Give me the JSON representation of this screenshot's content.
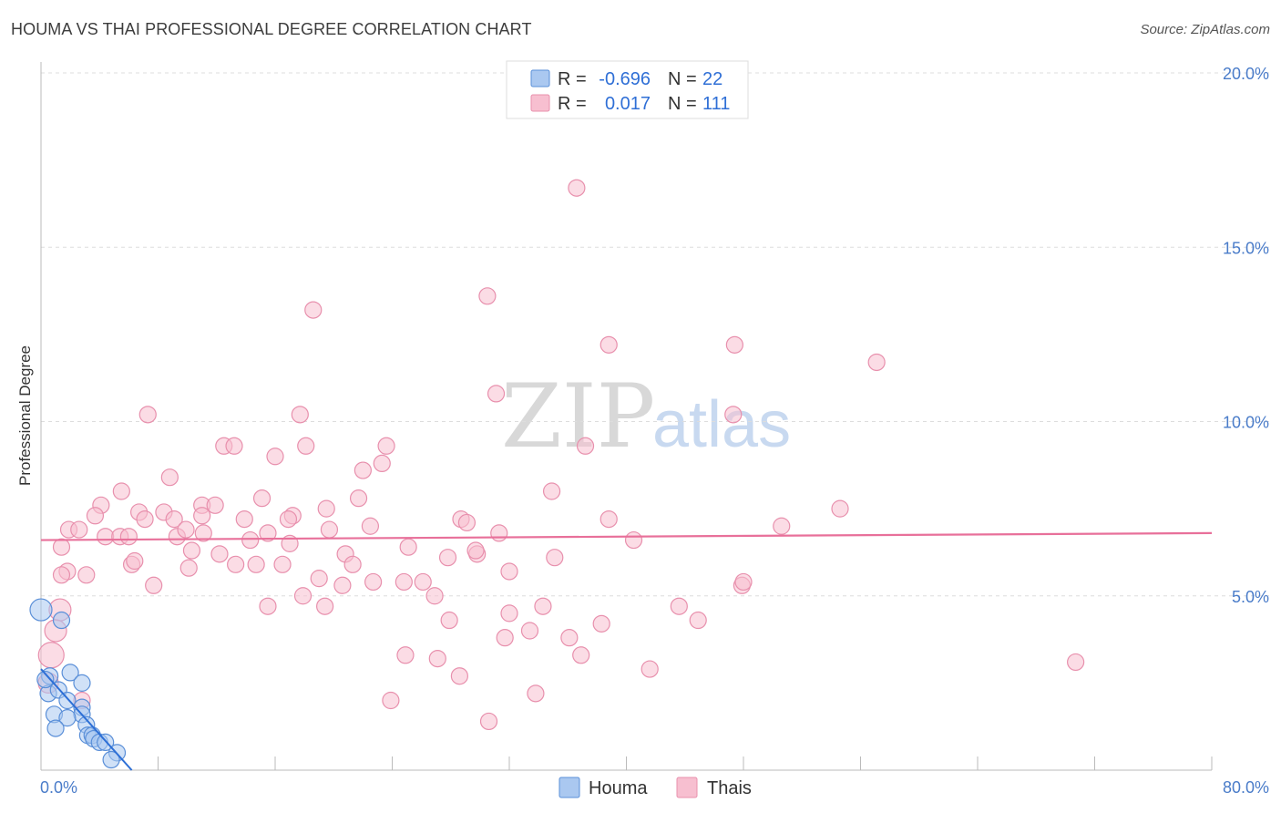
{
  "title": "HOUMA VS THAI PROFESSIONAL DEGREE CORRELATION CHART",
  "source": "Source: ZipAtlas.com",
  "watermark": {
    "zip": "ZIP",
    "atlas": "atlas"
  },
  "colors": {
    "houma_fill": "#aac8f0",
    "houma_stroke": "#5a8fd8",
    "houma_line": "#2d6fd6",
    "thai_fill": "#f7bfd0",
    "thai_stroke": "#e890ad",
    "thai_line": "#e8709a",
    "grid": "#dddddd",
    "axis": "#bbbbbb",
    "tick_text": "#4a7cc9"
  },
  "legend_top": {
    "rows": [
      {
        "r_label": "R =",
        "r_value": "-0.696",
        "n_label": "N =",
        "n_value": "22"
      },
      {
        "r_label": "R =",
        "r_value": "0.017",
        "n_label": "N =",
        "n_value": "111"
      }
    ]
  },
  "legend_bottom": [
    "Houma",
    "Thais"
  ],
  "chart_data": {
    "type": "scatter",
    "title": "HOUMA VS THAI PROFESSIONAL DEGREE CORRELATION CHART",
    "xlabel": "",
    "ylabel": "Professional Degree",
    "xlim": [
      0,
      80
    ],
    "ylim": [
      0,
      20
    ],
    "x_tick_labels": [
      "0.0%",
      "80.0%"
    ],
    "y_ticks": [
      5,
      10,
      15,
      20
    ],
    "y_tick_labels": [
      "5.0%",
      "10.0%",
      "15.0%",
      "20.0%"
    ],
    "series": [
      {
        "name": "Houma",
        "r": -0.696,
        "n": 22,
        "trend": {
          "x0": 0.0,
          "y0": 2.9,
          "x1": 6.2,
          "y1": 0.0
        },
        "points": [
          [
            0.0,
            4.6,
            12
          ],
          [
            1.4,
            4.3,
            9
          ],
          [
            0.6,
            2.7,
            9
          ],
          [
            0.5,
            2.2,
            9
          ],
          [
            1.2,
            2.3,
            9
          ],
          [
            2.0,
            2.8,
            9
          ],
          [
            2.8,
            2.5,
            9
          ],
          [
            1.8,
            2.0,
            9
          ],
          [
            0.9,
            1.6,
            9
          ],
          [
            2.8,
            1.8,
            9
          ],
          [
            2.8,
            1.6,
            9
          ],
          [
            3.1,
            1.3,
            9
          ],
          [
            1.8,
            1.5,
            9
          ],
          [
            1.0,
            1.2,
            9
          ],
          [
            3.2,
            1.0,
            9
          ],
          [
            3.5,
            1.0,
            9
          ],
          [
            3.6,
            0.9,
            9
          ],
          [
            4.0,
            0.8,
            9
          ],
          [
            4.4,
            0.8,
            9
          ],
          [
            5.2,
            0.5,
            9
          ],
          [
            4.8,
            0.3,
            9
          ],
          [
            0.3,
            2.6,
            9
          ]
        ]
      },
      {
        "name": "Thais",
        "r": 0.017,
        "n": 111,
        "trend": {
          "x0": 0.0,
          "y0": 6.6,
          "x1": 80.0,
          "y1": 6.8
        },
        "points": [
          [
            36.6,
            16.7,
            9
          ],
          [
            30.5,
            13.6,
            9
          ],
          [
            18.6,
            13.2,
            9
          ],
          [
            38.8,
            12.2,
            9
          ],
          [
            47.4,
            12.2,
            9
          ],
          [
            57.1,
            11.7,
            9
          ],
          [
            31.1,
            10.8,
            9
          ],
          [
            7.3,
            10.2,
            9
          ],
          [
            17.7,
            10.2,
            9
          ],
          [
            47.3,
            10.2,
            9
          ],
          [
            12.5,
            9.3,
            9
          ],
          [
            13.2,
            9.3,
            9
          ],
          [
            18.1,
            9.3,
            9
          ],
          [
            23.6,
            9.3,
            9
          ],
          [
            37.2,
            9.3,
            9
          ],
          [
            16.0,
            9.0,
            9
          ],
          [
            23.3,
            8.8,
            9
          ],
          [
            22.0,
            8.6,
            9
          ],
          [
            8.8,
            8.4,
            9
          ],
          [
            5.5,
            8.0,
            9
          ],
          [
            34.9,
            8.0,
            9
          ],
          [
            15.1,
            7.8,
            9
          ],
          [
            21.7,
            7.8,
            9
          ],
          [
            4.1,
            7.6,
            9
          ],
          [
            11.0,
            7.6,
            9
          ],
          [
            11.9,
            7.6,
            9
          ],
          [
            19.5,
            7.5,
            9
          ],
          [
            6.7,
            7.4,
            9
          ],
          [
            8.4,
            7.4,
            9
          ],
          [
            17.2,
            7.3,
            9
          ],
          [
            3.7,
            7.3,
            9
          ],
          [
            38.8,
            7.2,
            9
          ],
          [
            54.6,
            7.5,
            9
          ],
          [
            13.9,
            7.2,
            9
          ],
          [
            7.1,
            7.2,
            9
          ],
          [
            9.1,
            7.2,
            9
          ],
          [
            11.0,
            7.3,
            9
          ],
          [
            16.9,
            7.2,
            9
          ],
          [
            28.7,
            7.2,
            9
          ],
          [
            29.1,
            7.1,
            9
          ],
          [
            50.6,
            7.0,
            9
          ],
          [
            22.5,
            7.0,
            9
          ],
          [
            1.9,
            6.9,
            9
          ],
          [
            2.6,
            6.9,
            9
          ],
          [
            19.7,
            6.9,
            9
          ],
          [
            15.5,
            6.8,
            9
          ],
          [
            11.1,
            6.8,
            9
          ],
          [
            4.4,
            6.7,
            9
          ],
          [
            5.4,
            6.7,
            9
          ],
          [
            6.0,
            6.7,
            9
          ],
          [
            9.3,
            6.7,
            9
          ],
          [
            14.3,
            6.6,
            9
          ],
          [
            25.1,
            6.4,
            9
          ],
          [
            1.4,
            6.4,
            9
          ],
          [
            10.3,
            6.3,
            9
          ],
          [
            29.8,
            6.2,
            9
          ],
          [
            12.2,
            6.2,
            9
          ],
          [
            20.8,
            6.2,
            9
          ],
          [
            35.1,
            6.1,
            9
          ],
          [
            27.8,
            6.1,
            9
          ],
          [
            29.7,
            6.3,
            9
          ],
          [
            6.2,
            5.9,
            9
          ],
          [
            10.1,
            5.8,
            9
          ],
          [
            13.3,
            5.9,
            9
          ],
          [
            16.5,
            5.9,
            9
          ],
          [
            21.3,
            5.9,
            9
          ],
          [
            14.7,
            5.9,
            9
          ],
          [
            32.0,
            5.7,
            9
          ],
          [
            1.8,
            5.7,
            9
          ],
          [
            3.1,
            5.6,
            9
          ],
          [
            1.4,
            5.6,
            9
          ],
          [
            19.0,
            5.5,
            9
          ],
          [
            22.7,
            5.4,
            9
          ],
          [
            26.1,
            5.4,
            9
          ],
          [
            24.8,
            5.4,
            9
          ],
          [
            20.6,
            5.3,
            9
          ],
          [
            47.9,
            5.3,
            9
          ],
          [
            48.0,
            5.4,
            9
          ],
          [
            7.7,
            5.3,
            9
          ],
          [
            26.9,
            5.0,
            9
          ],
          [
            17.9,
            5.0,
            9
          ],
          [
            15.5,
            4.7,
            9
          ],
          [
            19.4,
            4.7,
            9
          ],
          [
            34.3,
            4.7,
            9
          ],
          [
            43.6,
            4.7,
            9
          ],
          [
            32.0,
            4.5,
            9
          ],
          [
            27.9,
            4.3,
            9
          ],
          [
            1.3,
            4.6,
            12
          ],
          [
            44.9,
            4.3,
            9
          ],
          [
            38.3,
            4.2,
            9
          ],
          [
            1.0,
            4.0,
            12
          ],
          [
            33.4,
            4.0,
            9
          ],
          [
            31.7,
            3.8,
            9
          ],
          [
            36.1,
            3.8,
            9
          ],
          [
            0.7,
            3.3,
            14
          ],
          [
            24.9,
            3.3,
            9
          ],
          [
            27.1,
            3.2,
            9
          ],
          [
            36.9,
            3.3,
            9
          ],
          [
            41.6,
            2.9,
            9
          ],
          [
            70.7,
            3.1,
            9
          ],
          [
            28.6,
            2.7,
            9
          ],
          [
            33.8,
            2.2,
            9
          ],
          [
            23.9,
            2.0,
            9
          ],
          [
            30.6,
            1.4,
            9
          ],
          [
            0.5,
            2.5,
            11
          ],
          [
            2.8,
            2.0,
            9
          ],
          [
            6.4,
            6.0,
            9
          ],
          [
            17.0,
            6.5,
            9
          ],
          [
            9.9,
            6.9,
            9
          ],
          [
            31.3,
            6.8,
            9
          ],
          [
            40.5,
            6.6,
            9
          ]
        ]
      }
    ],
    "grid": true,
    "legend": "top-center"
  }
}
